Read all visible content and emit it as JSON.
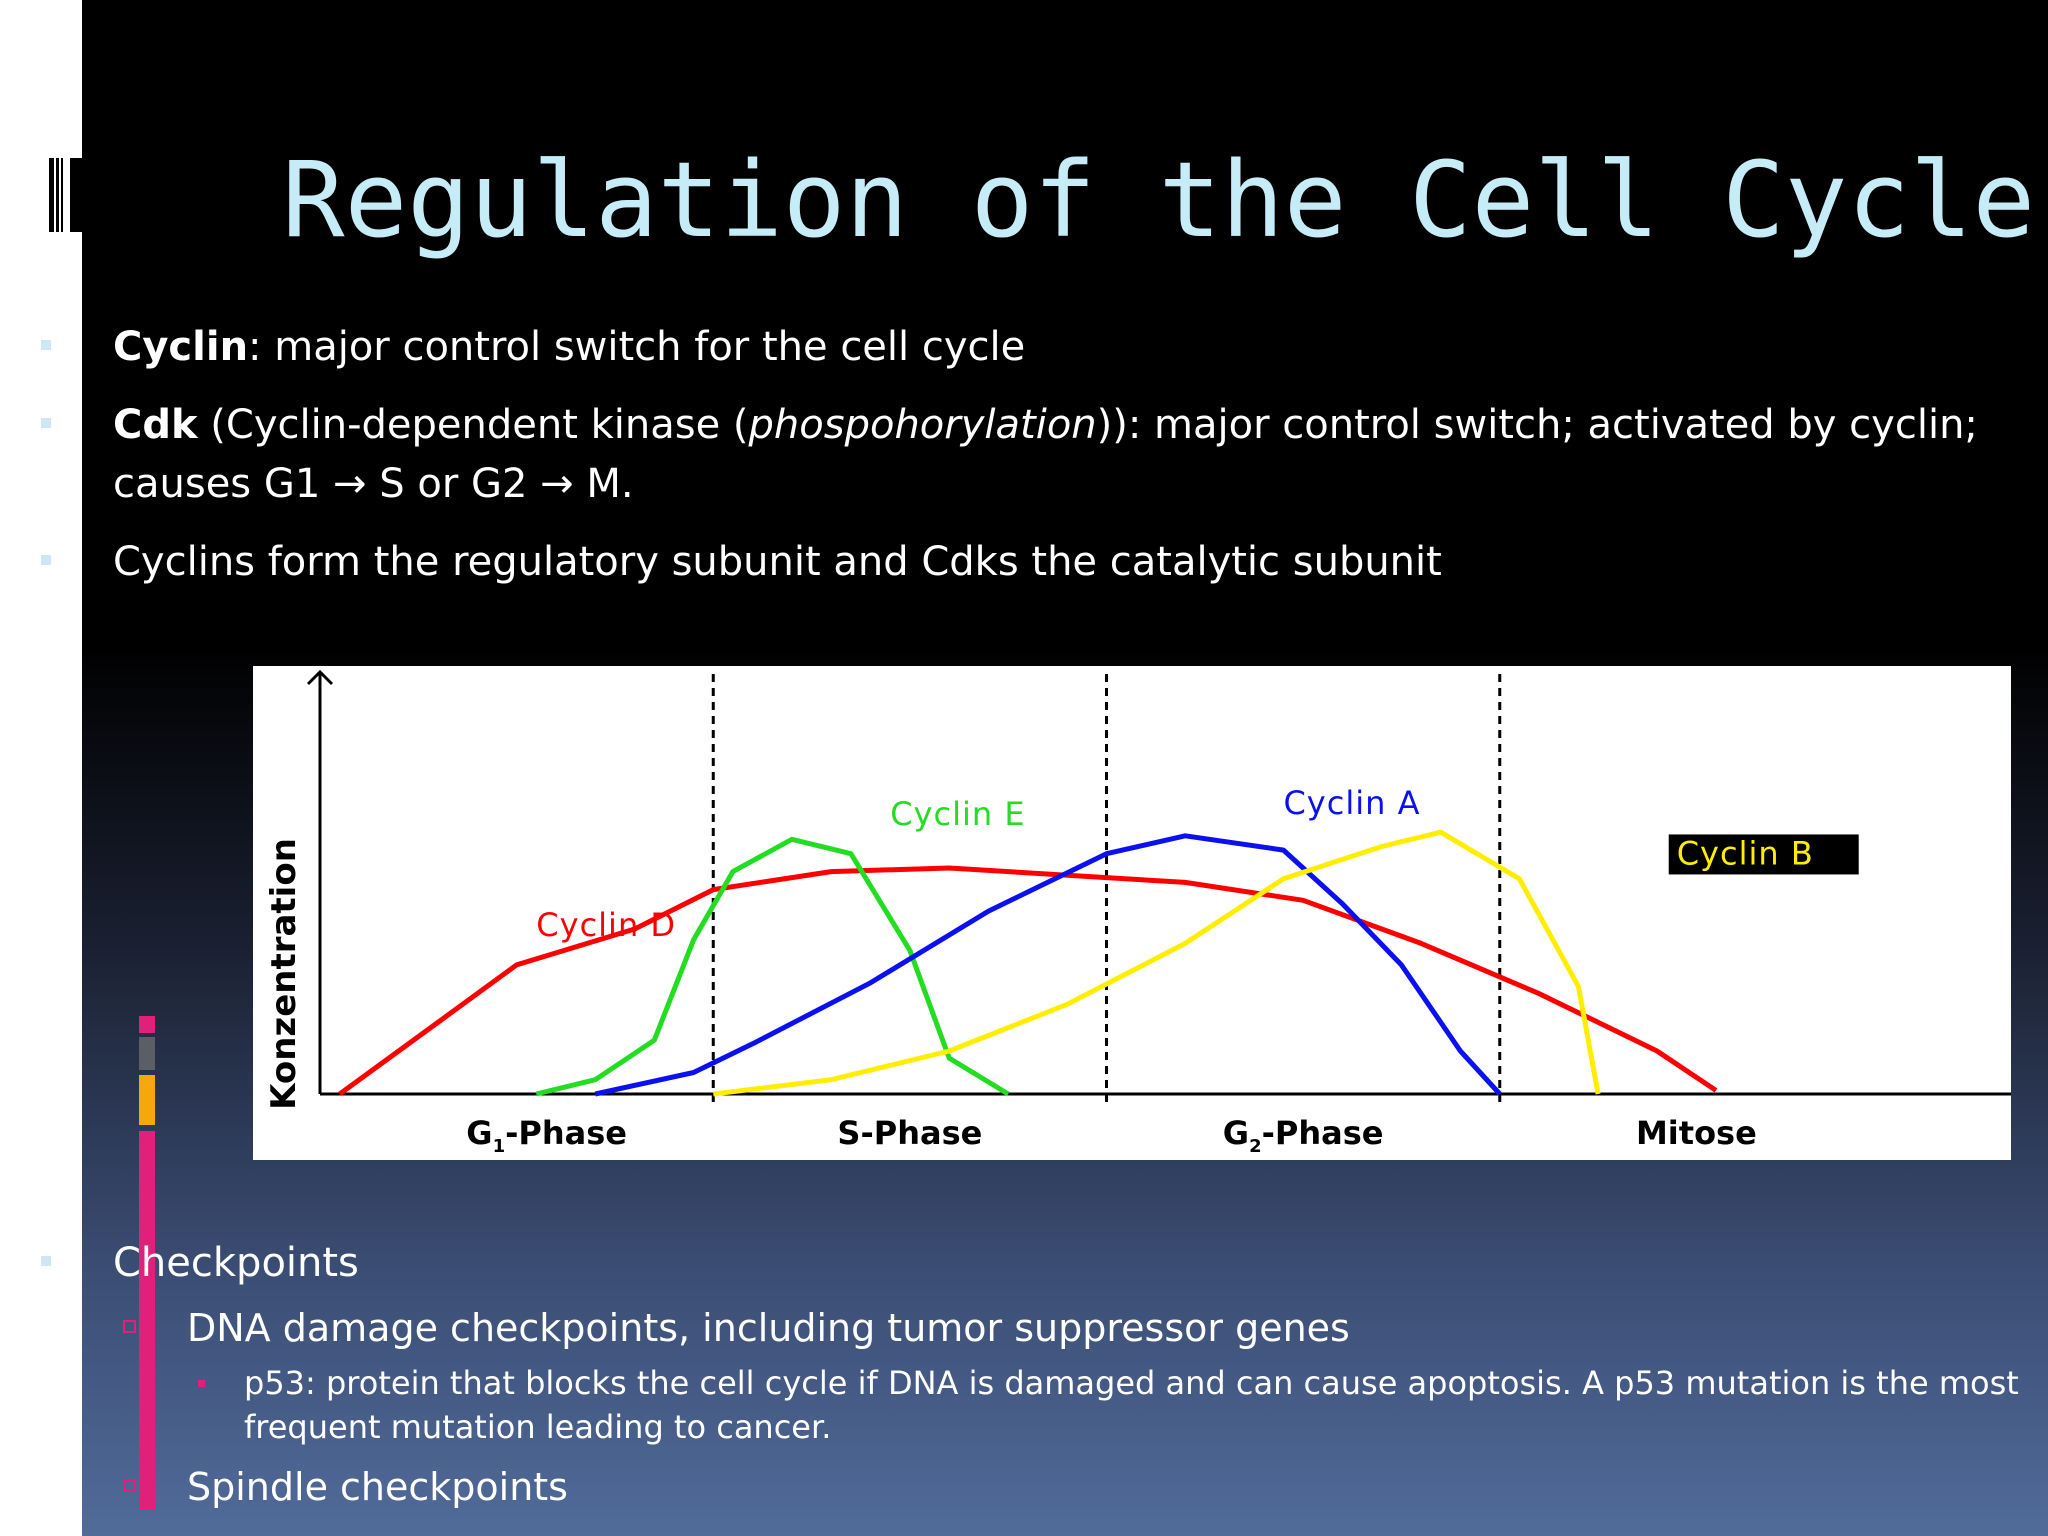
{
  "slide": {
    "title": "Regulation of the Cell Cycle",
    "bullets": [
      {
        "term": "Cyclin",
        "text": ": major control switch for the cell cycle"
      },
      {
        "term": "Cdk",
        "text_a": " (Cyclin-dependent kinase (",
        "italic": "phospohorylation",
        "text_b": ")): major control switch; activated by cyclin;",
        "line2": "causes G1 → S or G2 → M."
      },
      {
        "text": "Cyclins form the regulatory subunit and Cdks the catalytic subunit"
      }
    ],
    "checkpoints": {
      "heading": "Checkpoints",
      "dna": "DNA damage checkpoints, including tumor suppressor genes",
      "p53_line1": "p53: protein that blocks the cell cycle if DNA is damaged and can cause apoptosis. A p53 mutation is the most",
      "p53_line2": "frequent mutation leading to cancer.",
      "spindle": "Spindle checkpoints"
    }
  },
  "colors": {
    "title": "#c6ecf8",
    "cyclin_d": "#ff0000",
    "cyclin_e": "#22dd22",
    "cyclin_a": "#0a10ee",
    "cyclin_b": "#ffee00",
    "accent_pink": "#e0207a",
    "accent_gray": "#5a5f66",
    "accent_orange": "#f5a80a"
  },
  "chart_data": {
    "type": "line",
    "ylabel": "Konzentration",
    "xlabel": "",
    "phases": [
      {
        "label": "G",
        "sub": "1",
        "rest": "-Phase"
      },
      {
        "label": "S-Phase",
        "sub": "",
        "rest": ""
      },
      {
        "label": "G",
        "sub": "2",
        "rest": "-Phase"
      },
      {
        "label": "Mitose",
        "sub": "",
        "rest": ""
      }
    ],
    "phase_boundaries": [
      1,
      2,
      3
    ],
    "x_range": [
      0,
      4
    ],
    "y_range": [
      0,
      100
    ],
    "series": [
      {
        "name": "Cyclin D",
        "color": "#ff0000",
        "points": [
          [
            0.05,
            0
          ],
          [
            0.3,
            20
          ],
          [
            0.5,
            36
          ],
          [
            0.8,
            46
          ],
          [
            1.0,
            57
          ],
          [
            1.3,
            62
          ],
          [
            1.6,
            63
          ],
          [
            1.9,
            61
          ],
          [
            2.2,
            59
          ],
          [
            2.5,
            54
          ],
          [
            2.8,
            42
          ],
          [
            3.1,
            28
          ],
          [
            3.4,
            12
          ],
          [
            3.55,
            1
          ]
        ]
      },
      {
        "name": "Cyclin E",
        "color": "#22dd22",
        "points": [
          [
            0.55,
            0
          ],
          [
            0.7,
            4
          ],
          [
            0.85,
            15
          ],
          [
            0.95,
            43
          ],
          [
            1.05,
            62
          ],
          [
            1.2,
            71
          ],
          [
            1.35,
            67
          ],
          [
            1.5,
            40
          ],
          [
            1.6,
            10
          ],
          [
            1.75,
            0
          ]
        ]
      },
      {
        "name": "Cyclin A",
        "color": "#0a10ee",
        "points": [
          [
            0.7,
            0
          ],
          [
            0.95,
            6
          ],
          [
            1.1,
            14
          ],
          [
            1.4,
            31
          ],
          [
            1.7,
            51
          ],
          [
            2.0,
            67
          ],
          [
            2.2,
            72
          ],
          [
            2.45,
            68
          ],
          [
            2.6,
            53
          ],
          [
            2.75,
            36
          ],
          [
            2.9,
            12
          ],
          [
            3.0,
            0
          ]
        ]
      },
      {
        "name": "Cyclin B",
        "color": "#ffee00",
        "points": [
          [
            1.0,
            0
          ],
          [
            1.3,
            4
          ],
          [
            1.6,
            12
          ],
          [
            1.9,
            25
          ],
          [
            2.2,
            42
          ],
          [
            2.45,
            60
          ],
          [
            2.7,
            69
          ],
          [
            2.85,
            73
          ],
          [
            3.05,
            60
          ],
          [
            3.2,
            30
          ],
          [
            3.25,
            0
          ]
        ]
      }
    ],
    "series_labels": [
      {
        "name": "Cyclin D",
        "x": 0.55,
        "y": 44
      },
      {
        "name": "Cyclin E",
        "x": 1.45,
        "y": 75
      },
      {
        "name": "Cyclin A",
        "x": 2.45,
        "y": 78
      },
      {
        "name": "Cyclin B",
        "x": 3.45,
        "y": 64
      }
    ]
  }
}
